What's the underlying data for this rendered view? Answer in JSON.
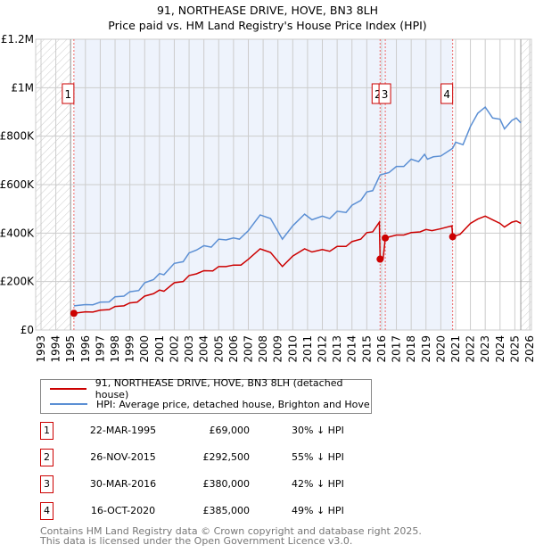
{
  "chart_data": {
    "type": "line",
    "title": "91, NORTHEASE DRIVE, HOVE, BN3 8LH",
    "subtitle": "Price paid vs. HM Land Registry's House Price Index (HPI)",
    "xlim": [
      1993,
      2026
    ],
    "ylim": [
      0,
      1200000
    ],
    "yticks": [
      {
        "v": 0,
        "label": "£0"
      },
      {
        "v": 200000,
        "label": "£200K"
      },
      {
        "v": 400000,
        "label": "£400K"
      },
      {
        "v": 600000,
        "label": "£600K"
      },
      {
        "v": 800000,
        "label": "£800K"
      },
      {
        "v": 1000000,
        "label": "£1M"
      },
      {
        "v": 1200000,
        "label": "£1.2M"
      }
    ],
    "xticks": [
      "1993",
      "1994",
      "1995",
      "1996",
      "1997",
      "1998",
      "1999",
      "2000",
      "2001",
      "2002",
      "2003",
      "2004",
      "2005",
      "2006",
      "2007",
      "2008",
      "2009",
      "2010",
      "2011",
      "2012",
      "2013",
      "2014",
      "2015",
      "2016",
      "2017",
      "2018",
      "2019",
      "2020",
      "2021",
      "2022",
      "2023",
      "2024",
      "2025",
      "2026"
    ],
    "grid": true,
    "colors": {
      "property": "#cc0000",
      "hpi": "#5b8fd4",
      "shade": "#eef3fc"
    },
    "series": [
      {
        "name": "91, NORTHEASE DRIVE, HOVE, BN3 8LH (detached house)",
        "color": "#cc0000",
        "points": [
          [
            1995.22,
            69000
          ],
          [
            1996,
            75000
          ],
          [
            1996.5,
            74000
          ],
          [
            1997,
            82000
          ],
          [
            1997.6,
            84000
          ],
          [
            1998,
            97000
          ],
          [
            1998.6,
            100000
          ],
          [
            1999,
            112000
          ],
          [
            1999.5,
            115000
          ],
          [
            2000,
            140000
          ],
          [
            2000.6,
            150000
          ],
          [
            2001,
            165000
          ],
          [
            2001.3,
            160000
          ],
          [
            2002,
            195000
          ],
          [
            2002.6,
            200000
          ],
          [
            2003,
            225000
          ],
          [
            2003.5,
            232000
          ],
          [
            2004,
            245000
          ],
          [
            2004.6,
            244000
          ],
          [
            2005,
            262000
          ],
          [
            2005.5,
            262000
          ],
          [
            2006,
            268000
          ],
          [
            2006.5,
            268000
          ],
          [
            2007,
            292000
          ],
          [
            2007.8,
            335000
          ],
          [
            2008.5,
            320000
          ],
          [
            2009.3,
            262000
          ],
          [
            2010,
            305000
          ],
          [
            2010.8,
            335000
          ],
          [
            2011.3,
            322000
          ],
          [
            2012,
            332000
          ],
          [
            2012.5,
            325000
          ],
          [
            2013,
            345000
          ],
          [
            2013.6,
            345000
          ],
          [
            2014,
            365000
          ],
          [
            2014.6,
            375000
          ],
          [
            2015,
            402000
          ],
          [
            2015.4,
            405000
          ],
          [
            2015.85,
            445000
          ],
          [
            2015.9,
            292500
          ],
          [
            2016.1,
            292000
          ],
          [
            2016.25,
            380000
          ],
          [
            2017,
            392000
          ],
          [
            2017.5,
            392000
          ],
          [
            2018,
            402000
          ],
          [
            2018.6,
            405000
          ],
          [
            2019,
            415000
          ],
          [
            2019.4,
            410000
          ],
          [
            2020,
            418000
          ],
          [
            2020.75,
            430000
          ],
          [
            2020.8,
            385000
          ],
          [
            2021.3,
            395000
          ],
          [
            2022,
            440000
          ],
          [
            2022.5,
            458000
          ],
          [
            2023,
            470000
          ],
          [
            2023.5,
            455000
          ],
          [
            2024,
            440000
          ],
          [
            2024.3,
            425000
          ],
          [
            2024.8,
            445000
          ],
          [
            2025.1,
            450000
          ],
          [
            2025.4,
            440000
          ]
        ]
      },
      {
        "name": "HPI: Average price, detached house, Brighton and Hove",
        "color": "#5b8fd4",
        "points": [
          [
            1995.22,
            100000
          ],
          [
            1996,
            105000
          ],
          [
            1996.5,
            104000
          ],
          [
            1997,
            115000
          ],
          [
            1997.6,
            116000
          ],
          [
            1998,
            137000
          ],
          [
            1998.6,
            140000
          ],
          [
            1999,
            158000
          ],
          [
            1999.6,
            163000
          ],
          [
            2000,
            195000
          ],
          [
            2000.6,
            208000
          ],
          [
            2001,
            233000
          ],
          [
            2001.3,
            228000
          ],
          [
            2002,
            275000
          ],
          [
            2002.6,
            282000
          ],
          [
            2003,
            318000
          ],
          [
            2003.5,
            330000
          ],
          [
            2004,
            348000
          ],
          [
            2004.5,
            342000
          ],
          [
            2005,
            375000
          ],
          [
            2005.5,
            372000
          ],
          [
            2006,
            380000
          ],
          [
            2006.4,
            375000
          ],
          [
            2007,
            410000
          ],
          [
            2007.8,
            475000
          ],
          [
            2008.5,
            460000
          ],
          [
            2009.3,
            375000
          ],
          [
            2010,
            430000
          ],
          [
            2010.8,
            478000
          ],
          [
            2011.3,
            455000
          ],
          [
            2012,
            470000
          ],
          [
            2012.5,
            460000
          ],
          [
            2013,
            490000
          ],
          [
            2013.6,
            485000
          ],
          [
            2014,
            515000
          ],
          [
            2014.6,
            535000
          ],
          [
            2015,
            570000
          ],
          [
            2015.4,
            575000
          ],
          [
            2015.9,
            640000
          ],
          [
            2016.5,
            650000
          ],
          [
            2017,
            675000
          ],
          [
            2017.5,
            675000
          ],
          [
            2018,
            705000
          ],
          [
            2018.5,
            695000
          ],
          [
            2018.9,
            725000
          ],
          [
            2019.1,
            705000
          ],
          [
            2019.5,
            715000
          ],
          [
            2020,
            718000
          ],
          [
            2020.8,
            750000
          ],
          [
            2021,
            775000
          ],
          [
            2021.5,
            765000
          ],
          [
            2022,
            840000
          ],
          [
            2022.5,
            895000
          ],
          [
            2023,
            920000
          ],
          [
            2023.5,
            875000
          ],
          [
            2024,
            870000
          ],
          [
            2024.3,
            830000
          ],
          [
            2024.8,
            865000
          ],
          [
            2025.1,
            875000
          ],
          [
            2025.4,
            855000
          ]
        ]
      }
    ],
    "sales": [
      {
        "id": "1",
        "x": 1995.22,
        "y": 69000,
        "date": "22-MAR-1995",
        "price": "£69,000",
        "hpi": "30% ↓ HPI"
      },
      {
        "id": "2",
        "x": 2015.9,
        "y": 292500,
        "date": "26-NOV-2015",
        "price": "£292,500",
        "hpi": "55% ↓ HPI"
      },
      {
        "id": "3",
        "x": 2016.25,
        "y": 380000,
        "date": "30-MAR-2016",
        "price": "£380,000",
        "hpi": "42% ↓ HPI"
      },
      {
        "id": "4",
        "x": 2020.8,
        "y": 385000,
        "date": "16-OCT-2020",
        "price": "£385,000",
        "hpi": "49% ↓ HPI"
      }
    ],
    "data_range": [
      1995.0,
      2025.4
    ]
  },
  "legend": {
    "property": "91, NORTHEASE DRIVE, HOVE, BN3 8LH (detached house)",
    "hpi": "HPI: Average price, detached house, Brighton and Hove"
  },
  "footer": {
    "line1": "Contains HM Land Registry data © Crown copyright and database right 2025.",
    "line2": "This data is licensed under the Open Government Licence v3.0."
  }
}
